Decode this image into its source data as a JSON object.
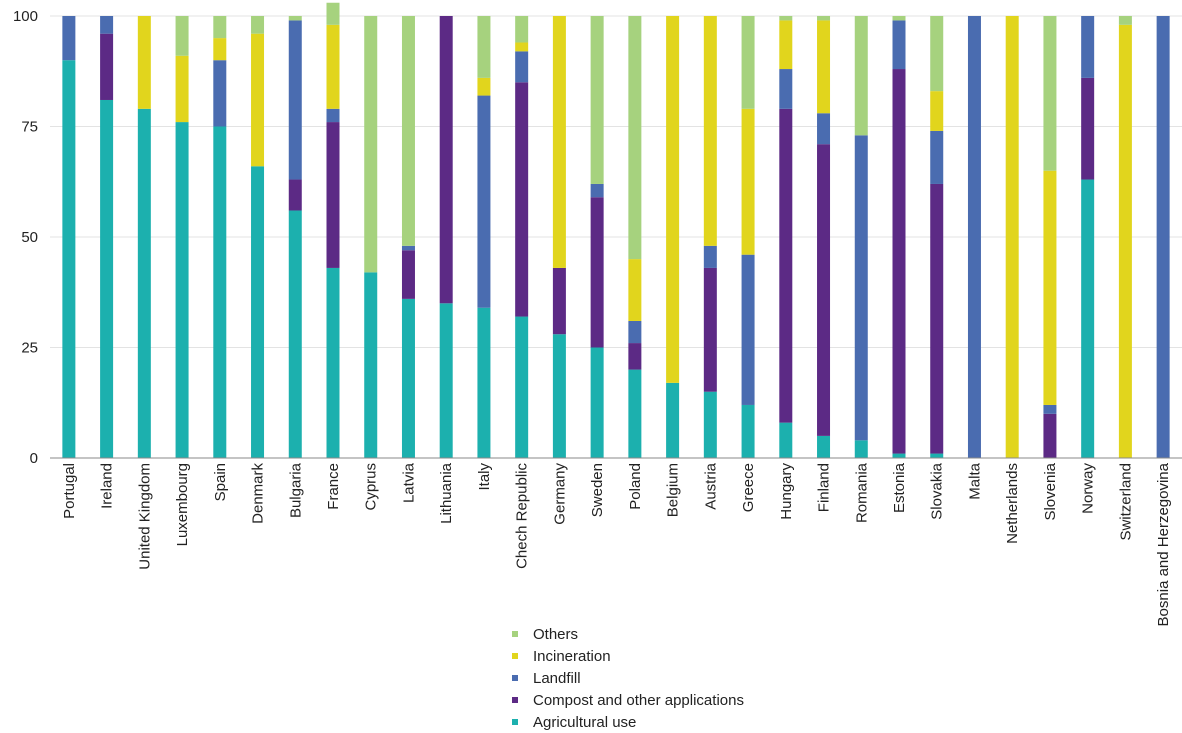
{
  "chart_data": {
    "type": "bar",
    "stacked": true,
    "title": "",
    "xlabel": "",
    "ylabel": "",
    "ylim": [
      0,
      100
    ],
    "yticks": [
      0,
      25,
      50,
      75,
      100
    ],
    "grid": true,
    "legend_position": "bottom",
    "categories": [
      "Portugal",
      "Ireland",
      "United Kingdom",
      "Luxembourg",
      "Spain",
      "Denmark",
      "Bulgaria",
      "France",
      "Cyprus",
      "Latvia",
      "Lithuania",
      "Italy",
      "Chech Republic",
      "Germany",
      "Sweden",
      "Poland",
      "Belgium",
      "Austria",
      "Greece",
      "Hungary",
      "Finland",
      "Romania",
      "Estonia",
      "Slovakia",
      "Malta",
      "Netherlands",
      "Slovenia",
      "Norway",
      "Switzerland",
      "Bosnia and Herzegovina"
    ],
    "series": [
      {
        "name": "Agricultural use",
        "color": "#1cb0ae",
        "values": [
          90,
          81,
          79,
          76,
          75,
          66,
          56,
          43,
          42,
          36,
          35,
          34,
          32,
          28,
          25,
          20,
          17,
          15,
          12,
          8,
          5,
          4,
          1,
          1,
          0,
          0,
          0,
          63,
          0,
          0
        ]
      },
      {
        "name": "Compost and other applications",
        "color": "#5c2a85",
        "values": [
          0,
          15,
          0,
          0,
          0,
          0,
          7,
          33,
          0,
          11,
          65,
          0,
          53,
          15,
          34,
          6,
          0,
          28,
          0,
          71,
          66,
          0,
          87,
          61,
          0,
          0,
          10,
          23,
          0,
          0
        ]
      },
      {
        "name": "Landfill",
        "color": "#4a6cb0",
        "values": [
          10,
          4,
          0,
          0,
          15,
          0,
          36,
          3,
          0,
          1,
          0,
          48,
          7,
          0,
          3,
          5,
          0,
          5,
          34,
          9,
          7,
          69,
          11,
          12,
          100,
          0,
          2,
          14,
          0,
          100
        ]
      },
      {
        "name": "Incineration",
        "color": "#e1d51d",
        "values": [
          0,
          0,
          21,
          15,
          5,
          30,
          0,
          19,
          0,
          0,
          0,
          4,
          2,
          57,
          0,
          14,
          83,
          52,
          33,
          11,
          21,
          0,
          0,
          9,
          0,
          100,
          53,
          0,
          98,
          0
        ]
      },
      {
        "name": "Others",
        "color": "#a6d27e",
        "values": [
          0,
          0,
          0,
          9,
          5,
          4,
          1,
          5,
          58,
          52,
          0,
          14,
          6,
          0,
          38,
          55,
          0,
          0,
          21,
          1,
          1,
          27,
          1,
          17,
          0,
          0,
          35,
          0,
          2,
          0
        ]
      }
    ]
  },
  "legend": {
    "items": [
      {
        "label": "Others",
        "color": "#a6d27e"
      },
      {
        "label": "Incineration",
        "color": "#e1d51d"
      },
      {
        "label": "Landfill",
        "color": "#4a6cb0"
      },
      {
        "label": "Compost and other applications",
        "color": "#5c2a85"
      },
      {
        "label": "Agricultural use",
        "color": "#1cb0ae"
      }
    ]
  }
}
